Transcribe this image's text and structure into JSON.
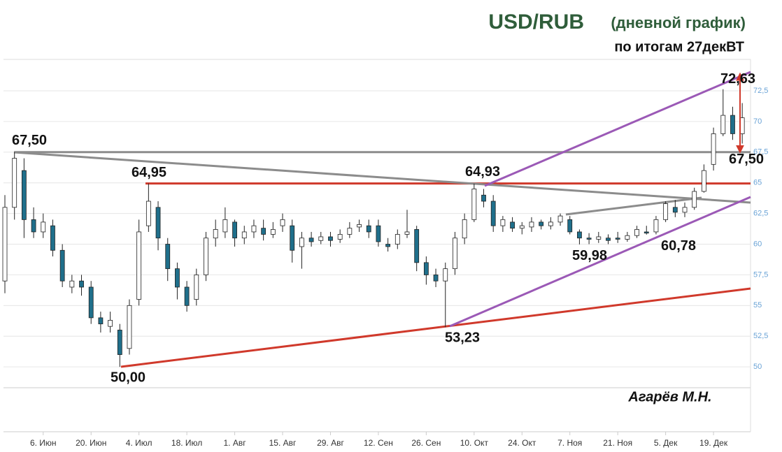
{
  "chart_data": {
    "type": "candlestick",
    "title": "USD/RUB",
    "title_note": "(дневной график)",
    "subtitle": "по итогам 27декВТ",
    "author": "Агарёв М.Н.",
    "categories": [
      null,
      null,
      null,
      null,
      "6. Июн",
      null,
      null,
      null,
      null,
      "20. Июн",
      null,
      null,
      null,
      null,
      "4. Июл",
      null,
      null,
      null,
      null,
      "18. Июл",
      null,
      null,
      null,
      null,
      "1. Авг",
      null,
      null,
      null,
      null,
      "15. Авг",
      null,
      null,
      null,
      null,
      "29. Авг",
      null,
      null,
      null,
      null,
      "12. Сен",
      null,
      null,
      null,
      null,
      "26. Сен",
      null,
      null,
      null,
      null,
      "10. Окт",
      null,
      null,
      null,
      null,
      "24. Окт",
      null,
      null,
      null,
      null,
      "7. Ноя",
      null,
      null,
      null,
      null,
      "21. Ноя",
      null,
      null,
      null,
      null,
      "5. Дек",
      null,
      null,
      null,
      null,
      "19. Дек",
      null,
      null,
      null
    ],
    "open": [
      57,
      63,
      66,
      62,
      61,
      61.5,
      59.5,
      56.5,
      57,
      56.5,
      54,
      53.3,
      53,
      51.5,
      55.5,
      61.5,
      63,
      60,
      58,
      56.5,
      55.5,
      57.5,
      60.5,
      61,
      61.8,
      60.5,
      61,
      61.3,
      60.8,
      61.5,
      61.5,
      59.8,
      60.5,
      60.3,
      60.6,
      60.4,
      60.8,
      61.4,
      61.5,
      61.5,
      60,
      60,
      60.8,
      61.2,
      58.5,
      57.5,
      57,
      58,
      60.5,
      62,
      64,
      63.5,
      61.5,
      61.8,
      61.3,
      61.4,
      61.8,
      61.5,
      61.8,
      62,
      61,
      60.5,
      60.4,
      60.5,
      60.5,
      60.4,
      60.7,
      61,
      61,
      62,
      63,
      62.6,
      63,
      64.3,
      66.5,
      69,
      70.5,
      69
    ],
    "high": [
      64,
      67.5,
      67,
      63,
      62.5,
      62,
      60,
      57.5,
      57.5,
      57,
      54.5,
      54.5,
      53.5,
      55.5,
      62,
      64.95,
      63.5,
      60.5,
      58.5,
      57,
      58,
      61,
      62,
      63,
      62,
      61.5,
      62,
      62,
      61.8,
      62.5,
      62,
      61,
      61,
      61,
      61,
      61.2,
      61.8,
      62,
      62,
      62,
      60.5,
      61.2,
      62.8,
      61.5,
      59,
      58,
      58.5,
      61,
      62.5,
      64.93,
      64.5,
      64,
      62.3,
      62.2,
      61.8,
      62.2,
      62,
      62.2,
      62.5,
      62.3,
      61.2,
      60.9,
      61,
      60.8,
      61,
      61,
      61.5,
      61.5,
      62.3,
      63.5,
      63.6,
      63.4,
      64.6,
      66.5,
      69.5,
      72.63,
      71.2,
      71.5
    ],
    "low": [
      56,
      62,
      60.5,
      60.5,
      60.5,
      59,
      56.5,
      56,
      55.8,
      53.5,
      52.8,
      52.8,
      50,
      51,
      55,
      61,
      59.5,
      57,
      55.5,
      54.5,
      55,
      57,
      59.8,
      60.5,
      59.8,
      60,
      60.5,
      60.3,
      60.5,
      61,
      58.5,
      58,
      59.8,
      60,
      59.8,
      60.1,
      60.5,
      61,
      60.5,
      59.8,
      59.4,
      59.6,
      60.5,
      57.8,
      56.7,
      56.5,
      53.23,
      57.5,
      60,
      61.8,
      63,
      61,
      61,
      61,
      60.8,
      61,
      61.2,
      61.2,
      61.5,
      60.8,
      59.98,
      60,
      60.1,
      60,
      60.1,
      60.2,
      60.5,
      60.78,
      60.8,
      61.8,
      62.2,
      62.2,
      62.8,
      64.2,
      66,
      68.8,
      68.5,
      68.2
    ],
    "close": [
      63,
      67,
      62,
      61,
      61.8,
      59.5,
      57,
      57,
      56.5,
      54,
      53.5,
      53.8,
      51,
      55,
      61,
      63.5,
      60.5,
      58,
      56.5,
      55,
      57.5,
      60.5,
      61.2,
      62,
      60.5,
      61,
      61.5,
      60.8,
      61.2,
      62,
      59.5,
      60.5,
      60.2,
      60.6,
      60.3,
      60.8,
      61.3,
      61.6,
      61,
      60.2,
      59.8,
      60.8,
      61,
      58.5,
      57.5,
      57,
      58,
      60.5,
      62,
      64.5,
      63.5,
      61.5,
      62,
      61.3,
      61.5,
      61.8,
      61.5,
      61.8,
      62.3,
      61,
      60.5,
      60.4,
      60.6,
      60.3,
      60.4,
      60.7,
      61.2,
      60.9,
      62,
      63.3,
      62.6,
      63,
      64.3,
      66,
      69,
      70.5,
      69,
      70.3
    ],
    "up_color": "#ffffff",
    "down_color": "#1f6f8b",
    "ylim": [
      48.3,
      75.06
    ],
    "yticks": [
      50,
      {
        "value": 52.5,
        "label": "52,5"
      },
      55,
      {
        "value": 57.5,
        "label": "57,5"
      },
      60,
      {
        "value": 62.5,
        "label": "62,5"
      },
      65,
      {
        "value": 67.5,
        "label": "67,5"
      },
      70,
      {
        "value": 72.5,
        "label": "72,5"
      }
    ],
    "grid": true,
    "annotations": [
      {
        "label": "67,50",
        "value": 67.5
      },
      {
        "label": "64,95",
        "value": 64.95
      },
      {
        "label": "64,93",
        "value": 64.93
      },
      {
        "label": "53,23",
        "value": 53.23
      },
      {
        "label": "50,00",
        "value": 50
      },
      {
        "label": "59,98",
        "value": 59.98
      },
      {
        "label": "60,78",
        "value": 60.78
      },
      {
        "label": "72,63",
        "value": 72.63
      },
      {
        "label": "67,50",
        "value": 67.5
      }
    ]
  }
}
